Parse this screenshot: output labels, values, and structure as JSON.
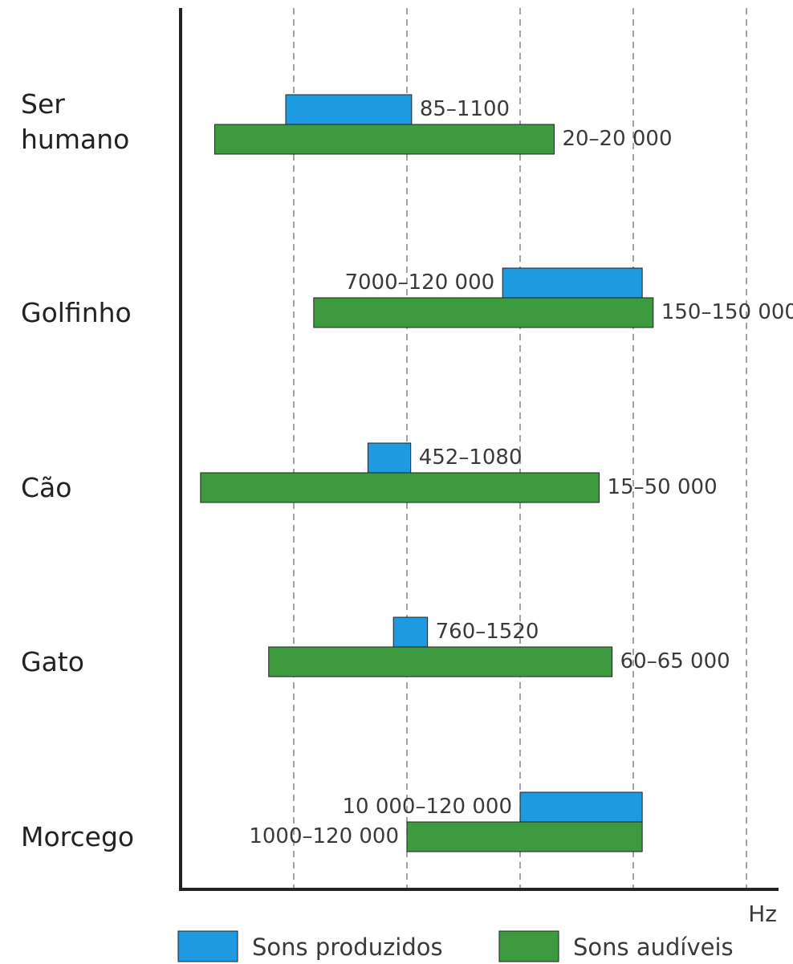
{
  "chart_data": {
    "type": "range-bar",
    "categories": [
      "Ser humano",
      "Golfinho",
      "Cão",
      "Gato",
      "Morcego"
    ],
    "x_label": "Hz",
    "log_scale": true,
    "xlim": [
      10,
      1000000
    ],
    "xticks": [
      100,
      1000,
      10000,
      100000,
      1000000
    ],
    "grid": true,
    "series": [
      {
        "name": "Sons produzidos",
        "color": "#1e9be0",
        "low": [
          85,
          7000,
          452,
          760,
          10000
        ],
        "high": [
          1100,
          120000,
          1080,
          1520,
          120000
        ],
        "value_labels": [
          "85–1100",
          "7000–120 000",
          "452–1080",
          "760–1520",
          "10 000–120 000"
        ]
      },
      {
        "name": "Sons audíveis",
        "color": "#3e9a3f",
        "low": [
          20,
          150,
          15,
          60,
          1000
        ],
        "high": [
          20000,
          150000,
          50000,
          65000,
          120000
        ],
        "value_labels": [
          "20–20 000",
          "150–150 000",
          "15–50 000",
          "60–65 000",
          "1000–120 000"
        ]
      }
    ]
  }
}
